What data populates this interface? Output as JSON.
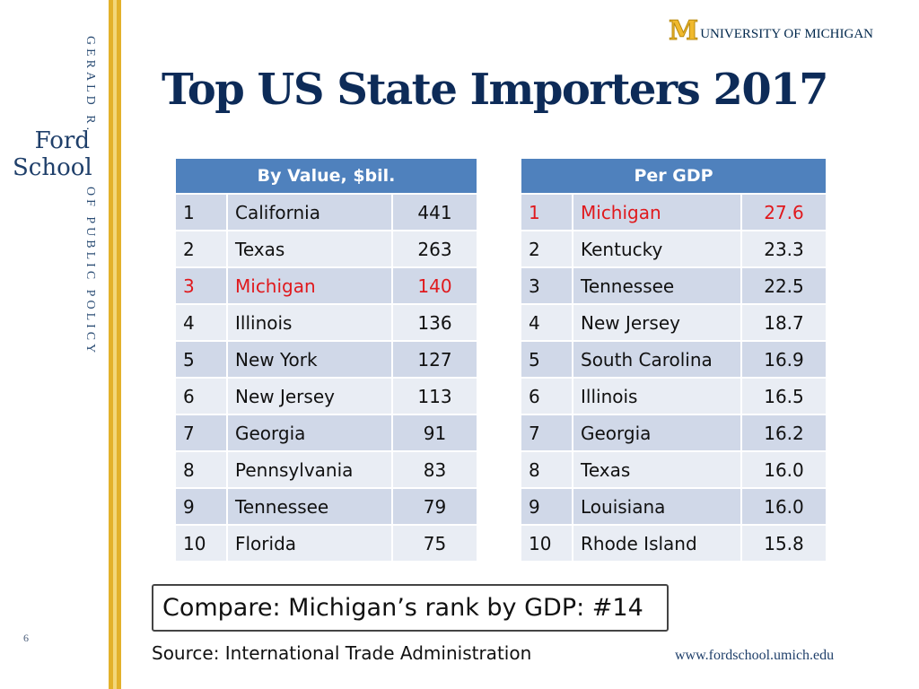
{
  "branding": {
    "school_top": "GERALD R.",
    "school_name_line1": "Ford",
    "school_name_line2": "School",
    "school_bottom": "OF PUBLIC POLICY",
    "university": "UNIVERSITY OF MICHIGAN",
    "university_mark": "M",
    "website": "www.fordschool.umich.edu",
    "colors": {
      "maize": "#f0b92d",
      "blue": "#00274c",
      "header": "#4f81bd",
      "highlight": "#e0191d"
    }
  },
  "slide": {
    "title": "Top US State Importers 2017",
    "page_number": "6",
    "compare_text": "Compare:  Michigan’s rank by GDP:  #14",
    "source": "Source:  International Trade Administration"
  },
  "table_value": {
    "header": "By Value, $bil.",
    "rows": [
      {
        "rank": "1",
        "state": "California",
        "value": "441"
      },
      {
        "rank": "2",
        "state": "Texas",
        "value": "263"
      },
      {
        "rank": "3",
        "state": "Michigan",
        "value": "140"
      },
      {
        "rank": "4",
        "state": "Illinois",
        "value": "136"
      },
      {
        "rank": "5",
        "state": "New York",
        "value": "127"
      },
      {
        "rank": "6",
        "state": "New Jersey",
        "value": "113"
      },
      {
        "rank": "7",
        "state": "Georgia",
        "value": "91"
      },
      {
        "rank": "8",
        "state": "Pennsylvania",
        "value": "83"
      },
      {
        "rank": "9",
        "state": "Tennessee",
        "value": "79"
      },
      {
        "rank": "10",
        "state": "Florida",
        "value": "75"
      }
    ]
  },
  "table_gdp": {
    "header": "Per GDP",
    "rows": [
      {
        "rank": "1",
        "state": "Michigan",
        "value": "27.6"
      },
      {
        "rank": "2",
        "state": "Kentucky",
        "value": "23.3"
      },
      {
        "rank": "3",
        "state": "Tennessee",
        "value": "22.5"
      },
      {
        "rank": "4",
        "state": "New Jersey",
        "value": "18.7"
      },
      {
        "rank": "5",
        "state": "South Carolina",
        "value": "16.9"
      },
      {
        "rank": "6",
        "state": "Illinois",
        "value": "16.5"
      },
      {
        "rank": "7",
        "state": "Georgia",
        "value": "16.2"
      },
      {
        "rank": "8",
        "state": "Texas",
        "value": "16.0"
      },
      {
        "rank": "9",
        "state": "Louisiana",
        "value": "16.0"
      },
      {
        "rank": "10",
        "state": "Rhode Island",
        "value": "15.8"
      }
    ]
  }
}
